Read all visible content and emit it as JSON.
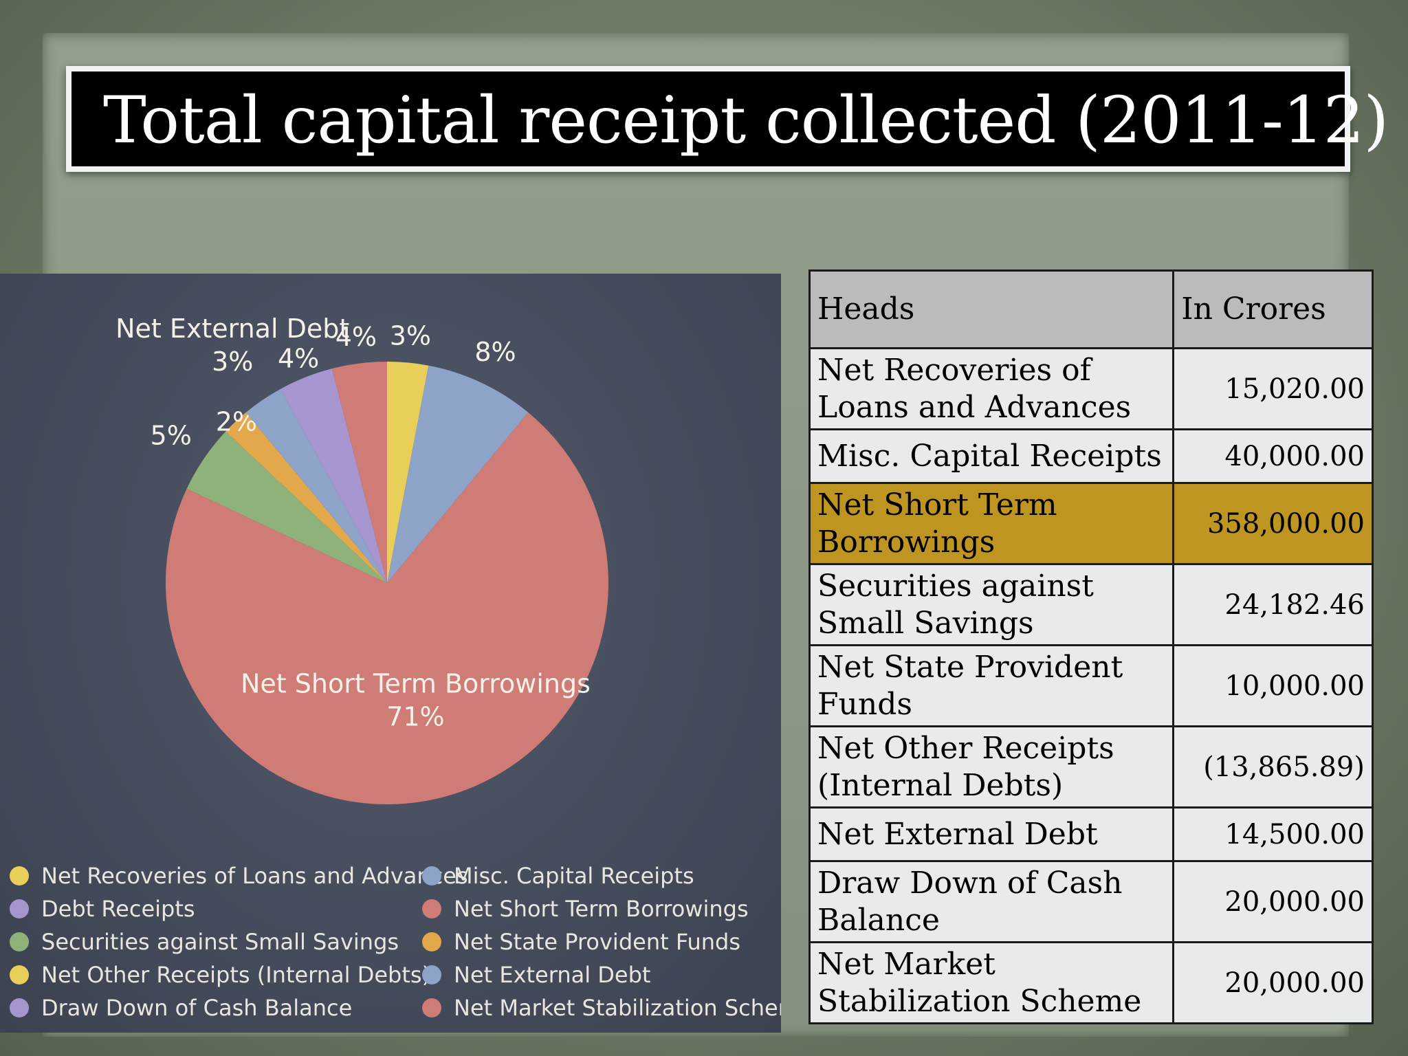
{
  "slide": {
    "title": "Total capital receipt collected (2011-12)"
  },
  "table": {
    "headers": [
      "Heads",
      "In Crores"
    ],
    "rows": [
      {
        "head": "Net Recoveries of Loans and Advances",
        "value": "15,020.00",
        "highlight": false
      },
      {
        "head": "Misc. Capital Receipts",
        "value": "40,000.00",
        "highlight": false
      },
      {
        "head": "Net Short Term Borrowings",
        "value": "358,000.00",
        "highlight": true
      },
      {
        "head": "Securities against Small Savings",
        "value": "24,182.46",
        "highlight": false
      },
      {
        "head": "Net State Provident Funds",
        "value": "10,000.00",
        "highlight": false
      },
      {
        "head": "Net Other Receipts (Internal Debts)",
        "value": "(13,865.89)",
        "highlight": false
      },
      {
        "head": "Net External Debt",
        "value": "14,500.00",
        "highlight": false
      },
      {
        "head": "Draw Down of Cash Balance",
        "value": "20,000.00",
        "highlight": false
      },
      {
        "head": "Net Market Stabilization Scheme",
        "value": "20,000.00",
        "highlight": false
      }
    ],
    "highlight_color": "#bd9520"
  },
  "chart_data": {
    "type": "pie",
    "start_angle_deg": 0,
    "slices": [
      {
        "name": "Net Recoveries of Loans and Advances",
        "value": 3,
        "label": "3%",
        "color": "#e8cf5a"
      },
      {
        "name": "Misc. Capital Receipts",
        "value": 8,
        "label": "8%",
        "color": "#8ea3c8"
      },
      {
        "name": "Net Short Term Borrowings",
        "value": 71,
        "label": "71%",
        "color": "#cf7b76"
      },
      {
        "name": "Securities against Small Savings",
        "value": 5,
        "label": "5%",
        "color": "#8fb27a"
      },
      {
        "name": "Net State Provident Funds",
        "value": 2,
        "label": "2%",
        "color": "#e3a84a"
      },
      {
        "name": "Net External Debt",
        "value": 3,
        "label": "3%",
        "color": "#8ea3c8"
      },
      {
        "name": "Debt Receipts",
        "value": 4,
        "label": "4%",
        "color": "#a795cf"
      },
      {
        "name": "Net Market Stabilization Scheme",
        "value": 4,
        "label": "4%",
        "color": "#cf7b76"
      }
    ],
    "named_callouts": {
      "Net External Debt": "Net External Debt",
      "Net Short Term Borrowings": "Net Short Term Borrowings"
    },
    "legend": [
      {
        "label": "Net Recoveries of Loans and Advances",
        "color": "#e8cf5a"
      },
      {
        "label": "Misc. Capital Receipts",
        "color": "#8ea3c8"
      },
      {
        "label": "Debt Receipts",
        "color": "#a795cf"
      },
      {
        "label": "Net Short Term Borrowings",
        "color": "#cf7b76"
      },
      {
        "label": "Securities against Small Savings",
        "color": "#8fb27a"
      },
      {
        "label": "Net State Provident Funds",
        "color": "#e3a84a"
      },
      {
        "label": "Net Other Receipts (Internal Debts)",
        "color": "#e8cf5a"
      },
      {
        "label": "Net External Debt",
        "color": "#8ea3c8"
      },
      {
        "label": "Draw Down of Cash Balance",
        "color": "#a795cf"
      },
      {
        "label": "Net Market Stabilization Scheme",
        "color": "#cf7b76"
      }
    ],
    "legend_placement": "bottom"
  }
}
